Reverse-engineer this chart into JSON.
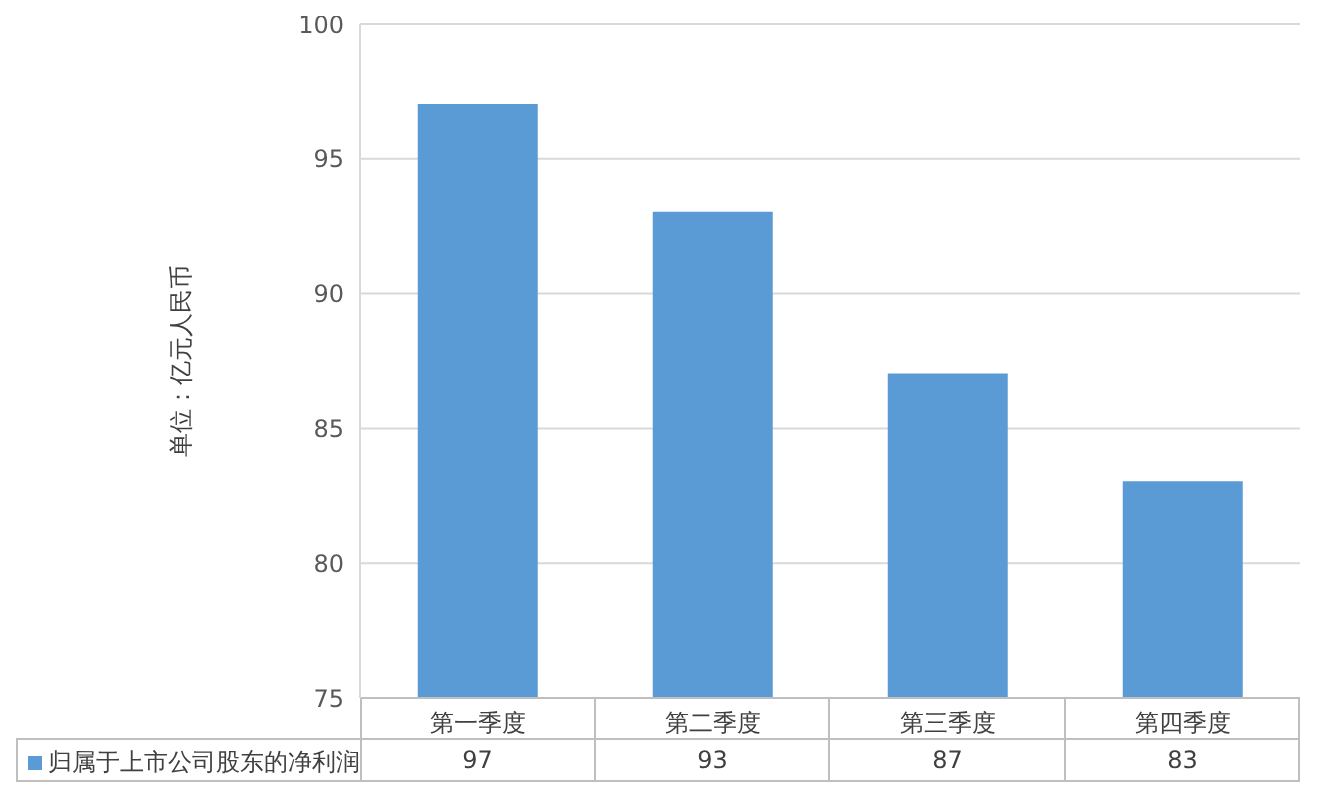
{
  "chart_data": {
    "type": "bar",
    "ylabel": "单位：亿元人民币",
    "categories": [
      "第一季度",
      "第二季度",
      "第三季度",
      "第四季度"
    ],
    "series": [
      {
        "name": "归属于上市公司股东的净利润",
        "color": "#5b9bd5",
        "values": [
          97,
          93,
          87,
          83
        ]
      }
    ],
    "ylim": [
      75,
      100
    ],
    "yticks": [
      75,
      80,
      85,
      90,
      95,
      100
    ],
    "grid": "y",
    "legend": "bottom",
    "data_labels": true
  }
}
